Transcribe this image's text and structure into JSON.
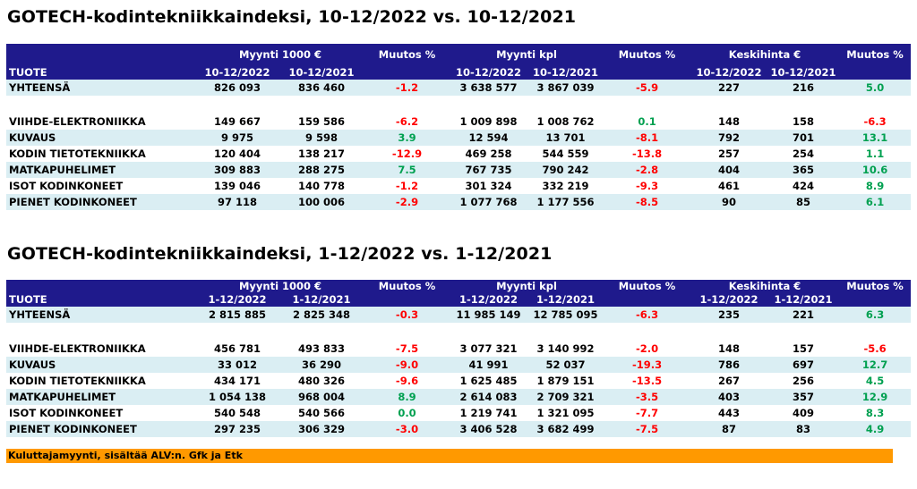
{
  "table1": {
    "title": "GOTECH-kodintekniikkaindeksi, 10-12/2022 vs. 10-12/2021",
    "headers": {
      "sales_value": "Myynti 1000 €",
      "change": "Muutos %",
      "sales_units": "Myynti kpl",
      "avg_price": "Keskihinta €",
      "product": "TUOTE",
      "period_current": "10-12/2022",
      "period_prev": "10-12/2021"
    },
    "total": {
      "name": "YHTEENSÄ",
      "v_cur": "826 093",
      "v_prev": "836 460",
      "v_chg": "-1.2",
      "u_cur": "3 638 577",
      "u_prev": "3 867 039",
      "u_chg": "-5.9",
      "p_cur": "227",
      "p_prev": "216",
      "p_chg": "5.0"
    },
    "rows": [
      {
        "name": "VIIHDE-ELEKTRONIIKKA",
        "v_cur": "149 667",
        "v_prev": "159 586",
        "v_chg": "-6.2",
        "u_cur": "1 009 898",
        "u_prev": "1 008 762",
        "u_chg": "0.1",
        "p_cur": "148",
        "p_prev": "158",
        "p_chg": "-6.3"
      },
      {
        "name": "KUVAUS",
        "v_cur": "9 975",
        "v_prev": "9 598",
        "v_chg": "3.9",
        "u_cur": "12 594",
        "u_prev": "13 701",
        "u_chg": "-8.1",
        "p_cur": "792",
        "p_prev": "701",
        "p_chg": "13.1"
      },
      {
        "name": "KODIN TIETOTEKNIIKKA",
        "v_cur": "120 404",
        "v_prev": "138 217",
        "v_chg": "-12.9",
        "u_cur": "469 258",
        "u_prev": "544 559",
        "u_chg": "-13.8",
        "p_cur": "257",
        "p_prev": "254",
        "p_chg": "1.1"
      },
      {
        "name": "MATKAPUHELIMET",
        "v_cur": "309 883",
        "v_prev": "288 275",
        "v_chg": "7.5",
        "u_cur": "767 735",
        "u_prev": "790 242",
        "u_chg": "-2.8",
        "p_cur": "404",
        "p_prev": "365",
        "p_chg": "10.6"
      },
      {
        "name": "ISOT KODINKONEET",
        "v_cur": "139 046",
        "v_prev": "140 778",
        "v_chg": "-1.2",
        "u_cur": "301 324",
        "u_prev": "332 219",
        "u_chg": "-9.3",
        "p_cur": "461",
        "p_prev": "424",
        "p_chg": "8.9"
      },
      {
        "name": "PIENET KODINKONEET",
        "v_cur": "97 118",
        "v_prev": "100 006",
        "v_chg": "-2.9",
        "u_cur": "1 077 768",
        "u_prev": "1 177 556",
        "u_chg": "-8.5",
        "p_cur": "90",
        "p_prev": "85",
        "p_chg": "6.1"
      }
    ]
  },
  "table2": {
    "title": "GOTECH-kodintekniikkaindeksi, 1-12/2022 vs. 1-12/2021",
    "headers": {
      "sales_value": "Myynti 1000 €",
      "change": "Muutos %",
      "sales_units": "Myynti kpl",
      "avg_price": "Keskihinta €",
      "product": "TUOTE",
      "period_current": "1-12/2022",
      "period_prev": "1-12/2021"
    },
    "total": {
      "name": "YHTEENSÄ",
      "v_cur": "2 815 885",
      "v_prev": "2 825 348",
      "v_chg": "-0.3",
      "u_cur": "11 985 149",
      "u_prev": "12 785 095",
      "u_chg": "-6.3",
      "p_cur": "235",
      "p_prev": "221",
      "p_chg": "6.3"
    },
    "rows": [
      {
        "name": "VIIHDE-ELEKTRONIIKKA",
        "v_cur": "456 781",
        "v_prev": "493 833",
        "v_chg": "-7.5",
        "u_cur": "3 077 321",
        "u_prev": "3 140 992",
        "u_chg": "-2.0",
        "p_cur": "148",
        "p_prev": "157",
        "p_chg": "-5.6"
      },
      {
        "name": "KUVAUS",
        "v_cur": "33 012",
        "v_prev": "36 290",
        "v_chg": "-9.0",
        "u_cur": "41 991",
        "u_prev": "52 037",
        "u_chg": "-19.3",
        "p_cur": "786",
        "p_prev": "697",
        "p_chg": "12.7"
      },
      {
        "name": "KODIN TIETOTEKNIIKKA",
        "v_cur": "434 171",
        "v_prev": "480 326",
        "v_chg": "-9.6",
        "u_cur": "1 625 485",
        "u_prev": "1 879 151",
        "u_chg": "-13.5",
        "p_cur": "267",
        "p_prev": "256",
        "p_chg": "4.5"
      },
      {
        "name": "MATKAPUHELIMET",
        "v_cur": "1 054 138",
        "v_prev": "968 004",
        "v_chg": "8.9",
        "u_cur": "2 614 083",
        "u_prev": "2 709 321",
        "u_chg": "-3.5",
        "p_cur": "403",
        "p_prev": "357",
        "p_chg": "12.9"
      },
      {
        "name": "ISOT KODINKONEET",
        "v_cur": "540 548",
        "v_prev": "540 566",
        "v_chg": "0.0",
        "u_cur": "1 219 741",
        "u_prev": "1 321 095",
        "u_chg": "-7.7",
        "p_cur": "443",
        "p_prev": "409",
        "p_chg": "8.3"
      },
      {
        "name": "PIENET KODINKONEET",
        "v_cur": "297 235",
        "v_prev": "306 329",
        "v_chg": "-3.0",
        "u_cur": "3 406 528",
        "u_prev": "3 682 499",
        "u_chg": "-7.5",
        "p_cur": "87",
        "p_prev": "83",
        "p_chg": "4.9"
      }
    ]
  },
  "footer": {
    "note": "Kuluttajamyynti, sisältää ALV:n.  Gfk ja Etk"
  },
  "colors": {
    "header_bg": "#1f1a8c",
    "row_shade": "#daeef3",
    "negative": "#ff0000",
    "positive": "#00a050",
    "footer_bg": "#ff9900"
  }
}
